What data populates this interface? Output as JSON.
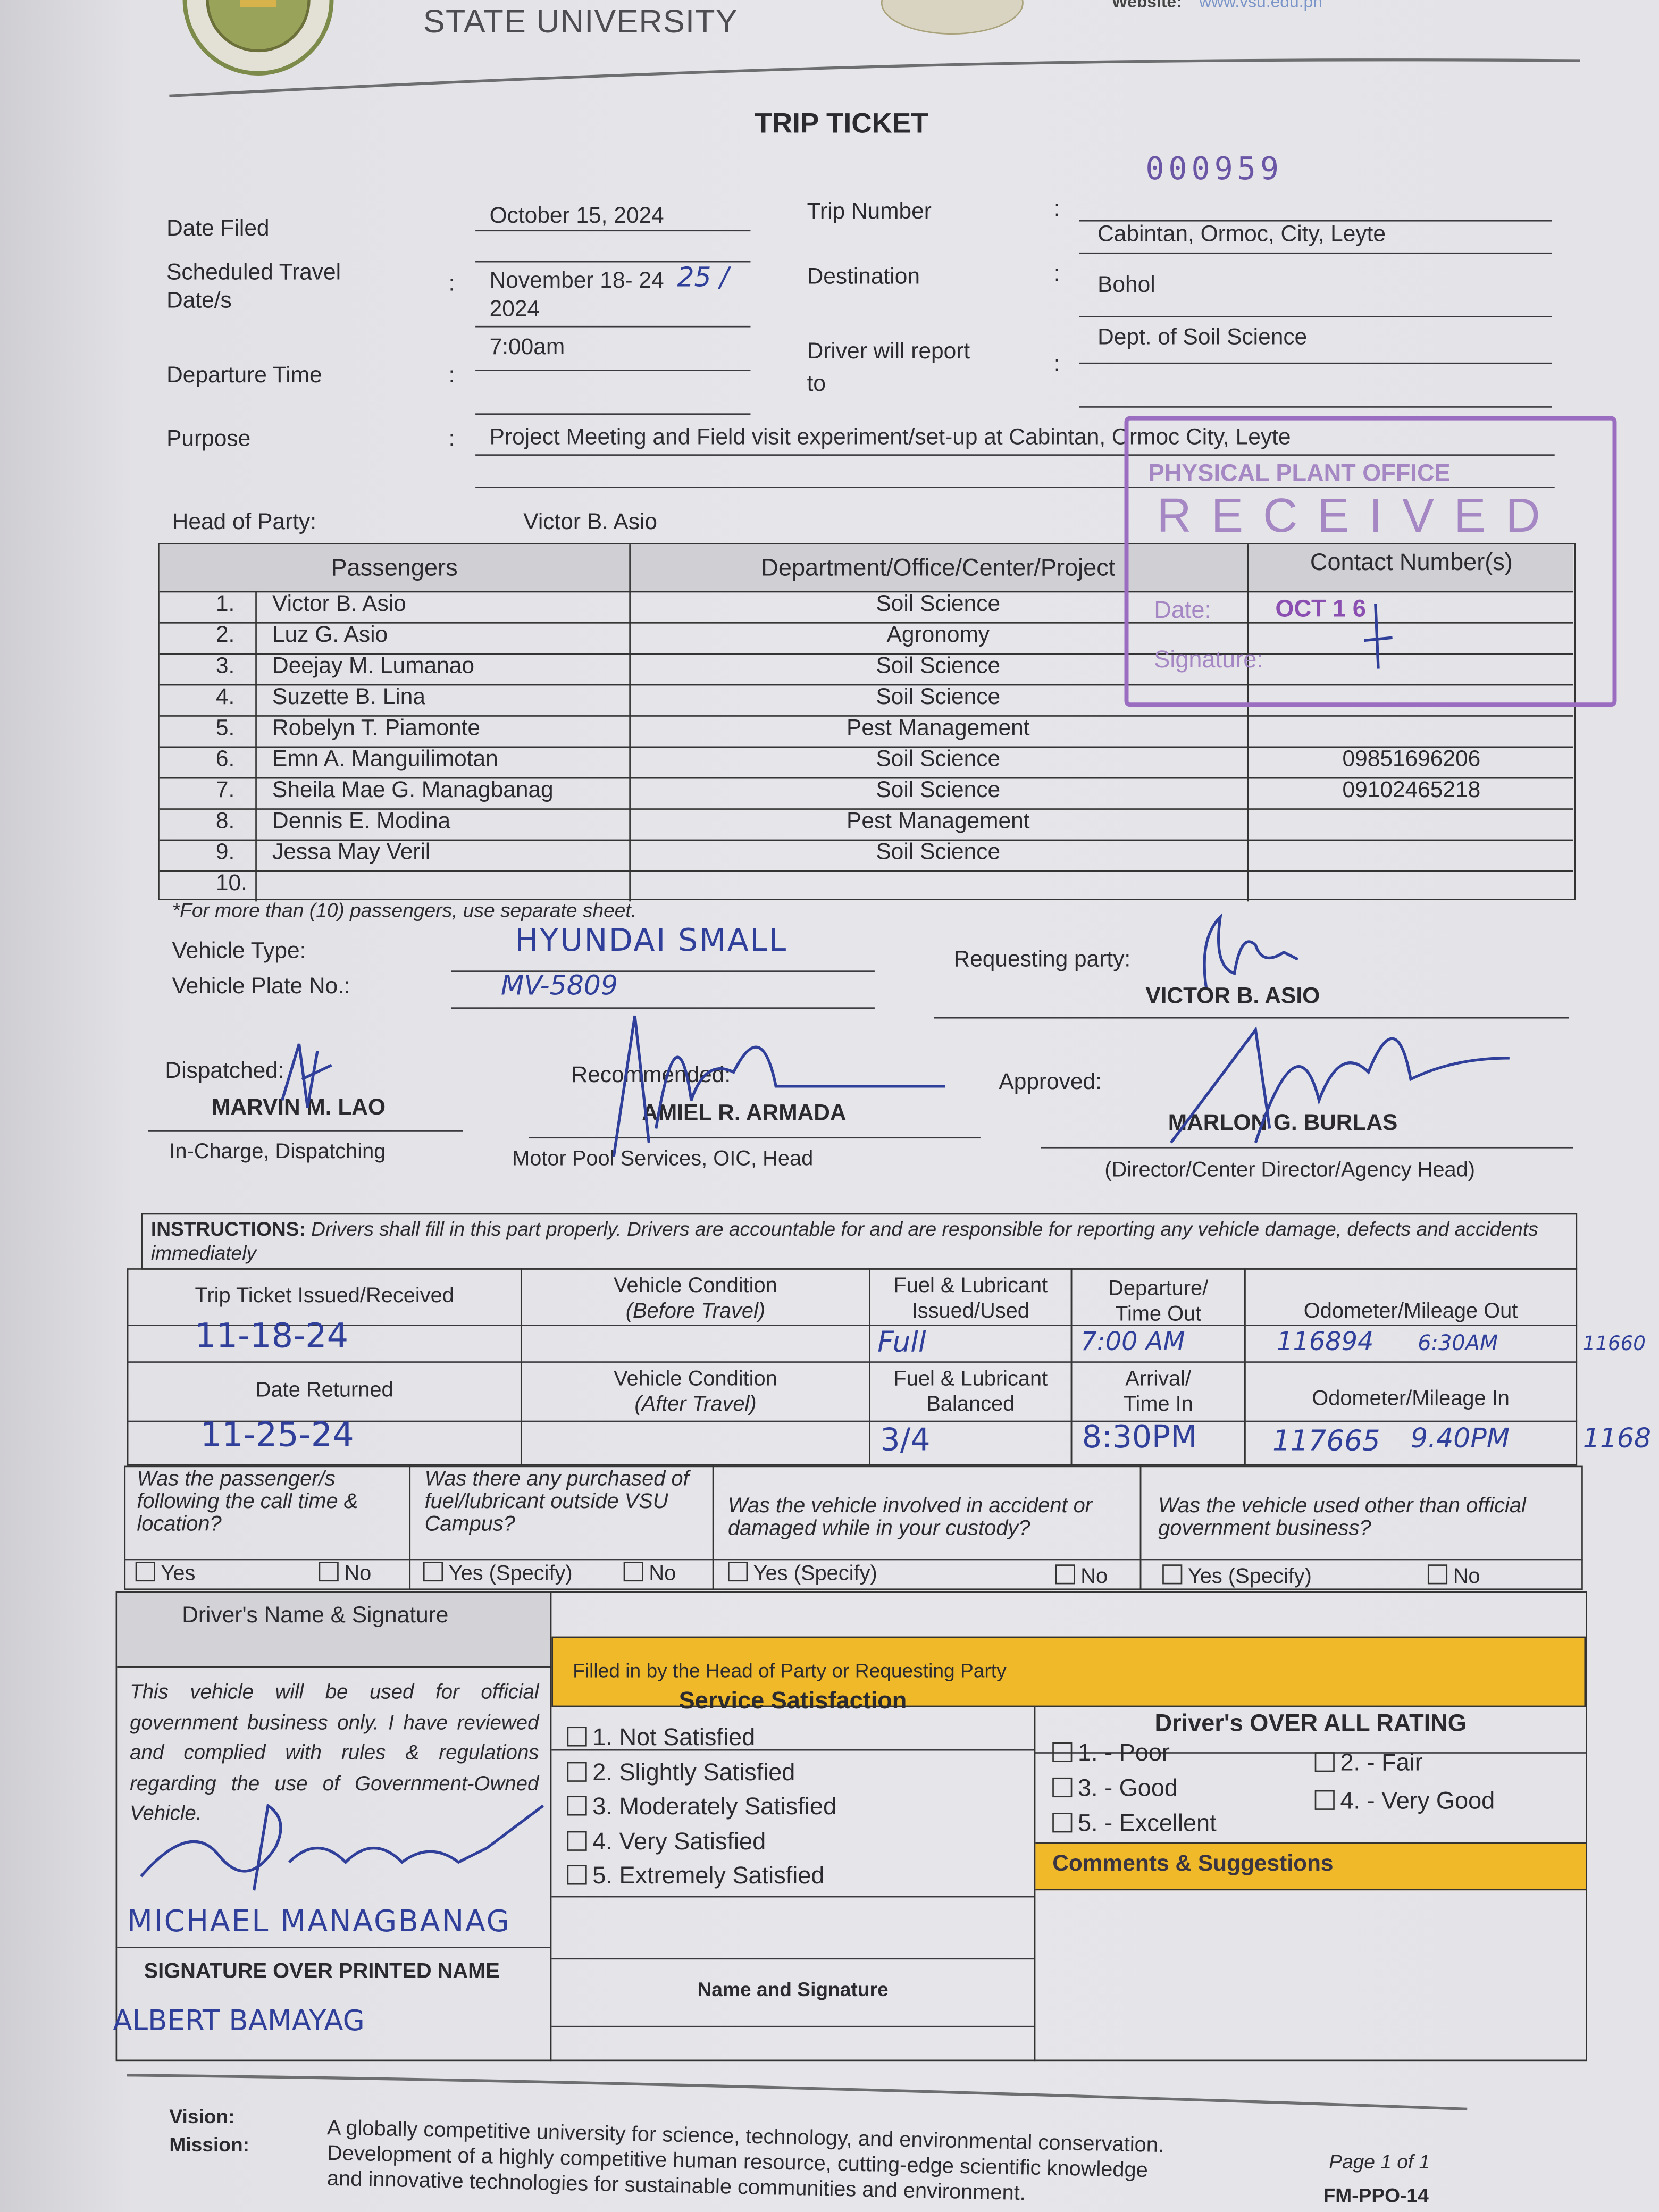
{
  "header": {
    "university": "STATE UNIVERSITY",
    "website_label": "Website:",
    "website_value": "www.vsu.edu.ph",
    "seal_text": "UNIVERSITY"
  },
  "title": "TRIP TICKET",
  "trip_number_value": "000959",
  "fields": {
    "date_filed": {
      "label": "Date Filed",
      "value": "October 15, 2024"
    },
    "scheduled": {
      "label_line1": "Scheduled Travel",
      "label_line2": "Date/s",
      "value_line1": "November 18- 24",
      "value_hand": "25 /",
      "value_line2": "2024"
    },
    "departure_time": {
      "label": "Departure Time",
      "value": "7:00am"
    },
    "purpose": {
      "label": "Purpose",
      "value": "Project Meeting and Field visit experiment/set-up at Cabintan, Ormoc City, Leyte"
    },
    "trip_number": {
      "label": "Trip Number",
      "value": "Cabintan, Ormoc, City, Leyte"
    },
    "destination": {
      "label": "Destination",
      "value": "Bohol"
    },
    "driver_report": {
      "label_line1": "Driver will report",
      "label_line2": "to",
      "value": "Dept. of Soil Science"
    },
    "colon": ":"
  },
  "stamp": {
    "line1": "PHYSICAL PLANT OFFICE",
    "line2": "RECEIVED",
    "date_label": "Date:",
    "date_value": "OCT 1 6",
    "sign_label": "Signature:",
    "color": "#8a4fb0"
  },
  "head_of_party": {
    "label": "Head of Party:",
    "value": "Victor B. Asio"
  },
  "passengers": {
    "headers": [
      "Passengers",
      "Department/Office/Center/Project",
      "Contact Number(s)"
    ],
    "rows": [
      {
        "no": "1.",
        "name": "Victor  B. Asio",
        "dept": "Soil Science",
        "contact": ""
      },
      {
        "no": "2.",
        "name": "Luz G. Asio",
        "dept": "Agronomy",
        "contact": ""
      },
      {
        "no": "3.",
        "name": "Deejay M. Lumanao",
        "dept": "Soil Science",
        "contact": ""
      },
      {
        "no": "4.",
        "name": "Suzette B. Lina",
        "dept": "Soil Science",
        "contact": ""
      },
      {
        "no": "5.",
        "name": "Robelyn T. Piamonte",
        "dept": "Pest Management",
        "contact": ""
      },
      {
        "no": "6.",
        "name": "Emn A. Manguilimotan",
        "dept": "Soil Science",
        "contact": "09851696206"
      },
      {
        "no": "7.",
        "name": "Sheila Mae G. Managbanag",
        "dept": "Soil Science",
        "contact": "09102465218"
      },
      {
        "no": "8.",
        "name": "Dennis E. Modina",
        "dept": "Pest Management",
        "contact": ""
      },
      {
        "no": "9.",
        "name": "Jessa May Veril",
        "dept": "Soil Science",
        "contact": ""
      },
      {
        "no": "10.",
        "name": "",
        "dept": "",
        "contact": ""
      }
    ],
    "note": "*For more than (10) passengers, use separate sheet."
  },
  "vehicle": {
    "type_label": "Vehicle Type:",
    "type_value": "HYUNDAI SMALL",
    "plate_label": "Vehicle Plate No.:",
    "plate_value": "MV-5809"
  },
  "requesting": {
    "label": "Requesting party:",
    "name": "VICTOR B. ASIO"
  },
  "dispatched": {
    "label": "Dispatched:",
    "name": "MARVIN M. LAO",
    "title": "In-Charge, Dispatching"
  },
  "recommended": {
    "label": "Recommended:",
    "name": "AMIEL R. ARMADA",
    "title": "Motor Pool Services, OIC, Head"
  },
  "approved": {
    "label": "Approved:",
    "name": "MARLON G. BURLAS",
    "title": "(Director/Center Director/Agency Head)"
  },
  "instructions": {
    "bold": "INSTRUCTIONS:",
    "text": " Drivers shall fill in this part properly.  Drivers are accountable for and are responsible for reporting any vehicle damage, defects and accidents immediately"
  },
  "log": {
    "issued_label": "Trip Ticket Issued/Received",
    "issued_value": "11-18-24",
    "cond_before_l1": "Vehicle Condition",
    "cond_before_l2": "(Before Travel)",
    "fuel_issued_l1": "Fuel & Lubricant",
    "fuel_issued_l2": "Issued/Used",
    "fuel_issued_value": "Full",
    "dep_l1": "Departure/",
    "dep_l2": "Time Out",
    "dep_value": "7:00 AM",
    "odo_out_label": "Odometer/Mileage Out",
    "odo_out_value": "116894",
    "odo_out_time": "6:30AM",
    "odo_out_margin": "11660",
    "returned_label": "Date Returned",
    "returned_value": "11-25-24",
    "cond_after_l1": "Vehicle Condition",
    "cond_after_l2": "(After Travel)",
    "fuel_bal_l1": "Fuel & Lubricant",
    "fuel_bal_l2": "Balanced",
    "fuel_bal_value": "3/4",
    "arr_l1": "Arrival/",
    "arr_l2": "Time In",
    "arr_value": "8:30PM",
    "odo_in_label": "Odometer/Mileage In",
    "odo_in_value": "117665",
    "odo_in_time": "9.40PM",
    "odo_in_margin": "1168"
  },
  "questions": [
    {
      "text": "Was the passenger/s following the call time & location?",
      "opt1": "Yes",
      "opt2": "No"
    },
    {
      "text": "Was there any purchased of fuel/lubricant outside VSU Campus?",
      "opt1": "Yes (Specify)",
      "opt2": "No"
    },
    {
      "text": "Was the vehicle involved in accident or damaged while in your custody?",
      "opt1": "Yes (Specify)",
      "opt2": "No"
    },
    {
      "text": "Was the vehicle used other than official government business?",
      "opt1": "Yes (Specify)",
      "opt2": "No"
    }
  ],
  "driver": {
    "header": "Driver's Name & Signature",
    "statement": "This vehicle will be used for official government business only.  I have reviewed and complied with rules & regulations regarding the use of Government-Owned Vehicle.",
    "handwritten_name": "MICHAEL MANAGBANAG",
    "caption": "SIGNATURE OVER PRINTED NAME",
    "second_name": "ALBERT BAMAYAG"
  },
  "head_section": {
    "banner": "Filled in by the Head of Party or Requesting Party",
    "banner_color": "#f0b92a"
  },
  "satisfaction": {
    "title": "Service Satisfaction",
    "options": [
      "1.  Not Satisfied",
      "2.  Slightly Satisfied",
      "3.  Moderately Satisfied",
      "4.  Very Satisfied",
      "5.  Extremely Satisfied"
    ],
    "name_caption": "Name and Signature"
  },
  "rating": {
    "title": "Driver's OVER ALL RATING",
    "options": [
      "1. - Poor",
      "2. - Fair",
      "3. - Good",
      "4. - Very Good",
      "5. - Excellent"
    ]
  },
  "comments": {
    "title": "Comments & Suggestions"
  },
  "footer": {
    "vision_label": "Vision:",
    "mission_label": "Mission:",
    "vision": "A globally competitive university for science, technology, and environmental conservation.",
    "mission_l1": "Development of a highly competitive human resource, cutting-edge scientific knowledge",
    "mission_l2": "and innovative technologies for sustainable communities and environment.",
    "page": "Page 1 of 1",
    "form_code": "FM-PPO-14"
  }
}
